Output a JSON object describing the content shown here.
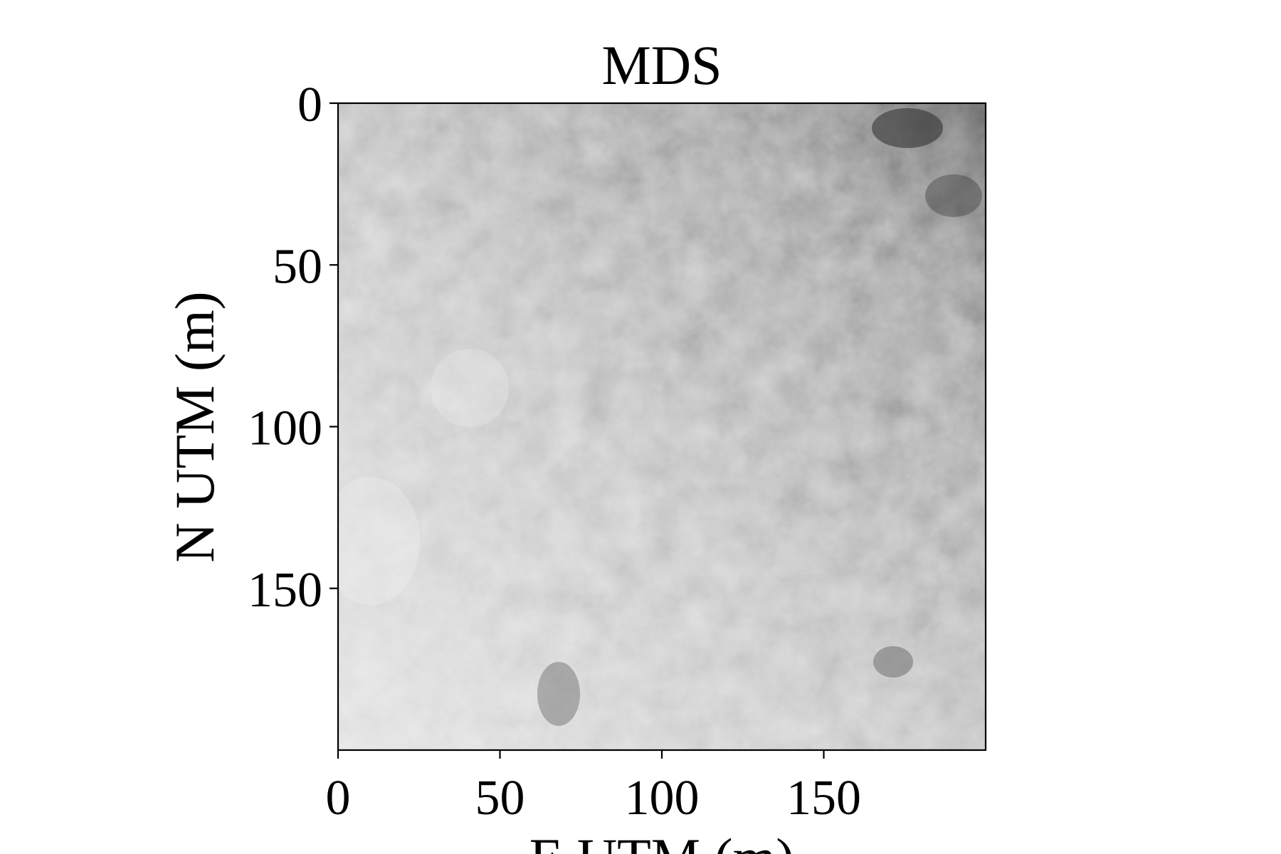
{
  "chart_data": {
    "type": "heatmap",
    "title": "MDS",
    "xlabel": "E UTM (m)",
    "ylabel": "N UTM (m)",
    "xlim": [
      0,
      200
    ],
    "ylim": [
      0,
      200
    ],
    "y_inverted": true,
    "colormap": "gray",
    "xticks": [
      0,
      50,
      100,
      150
    ],
    "yticks": [
      0,
      50,
      100,
      150
    ],
    "xtick_labels": [
      "0",
      "50",
      "100",
      "150"
    ],
    "ytick_labels": [
      "0",
      "50",
      "100",
      "150"
    ],
    "grid": false,
    "trend": "lighter (higher canopy) toward the west/south-west, darker toward the north-east"
  }
}
